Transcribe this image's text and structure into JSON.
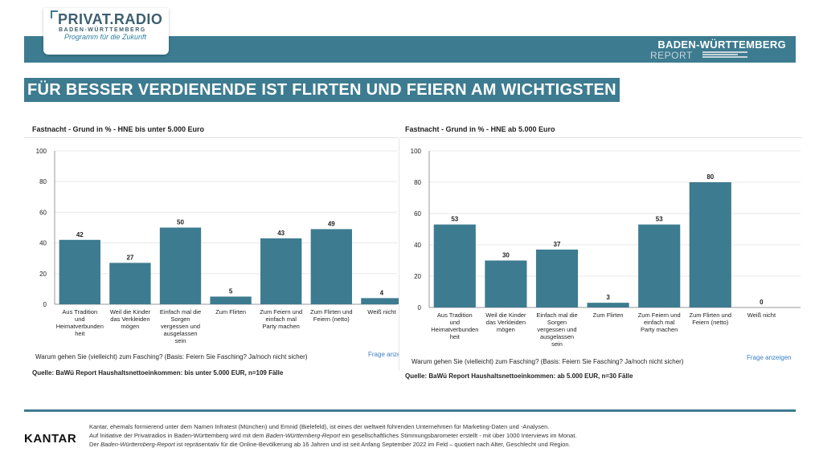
{
  "logo": {
    "title": "PRIVAT.RADIO",
    "subtitle": "BADEN-WÜRTTEMBERG",
    "tagline": "Programm für die Zukunft"
  },
  "brand": {
    "line1": "BADEN-WÜRTTEMBERG",
    "line2": "REPORT"
  },
  "headline": "FÜR BESSER VERDIENENDE IST FLIRTEN UND FEIERN AM WICHTIGSTEN",
  "colors": {
    "banner": "#3d7b90",
    "bar": "#3d7b90",
    "link": "#3b7fc4"
  },
  "panels": [
    {
      "title": "Fastnacht - Grund in % - HNE bis unter 5.000 Euro",
      "question": "Warum gehen Sie (vielleicht) zum Fasching? (Basis: Feiern Sie Fasching? Ja/noch nicht sicher)",
      "frage": "Frage anzeigen",
      "source": "Quelle: BaWü Report Haushaltsnettoeinkommen: bis unter 5.000 EUR, n=109 Fälle"
    },
    {
      "title": "Fastnacht - Grund in % - HNE ab 5.000 Euro",
      "question": "Warum gehen Sie (vielleicht) zum Fasching? (Basis: Feiern Sie Fasching? Ja/noch nicht sicher)",
      "frage": "Frage anzeigen",
      "source": "Quelle: BaWü Report Haushaltsnettoeinkommen: ab 5.000 EUR, n=30 Fälle"
    }
  ],
  "chart_data": [
    {
      "type": "bar",
      "title": "Fastnacht - Grund in % - HNE bis unter 5.000 Euro",
      "categories": [
        [
          "Aus Tradition",
          "und",
          "Heimatverbunden",
          "heit"
        ],
        [
          "Weil die Kinder",
          "das Verkleiden",
          "mögen"
        ],
        [
          "Einfach mal die",
          "Sorgen",
          "vergessen und",
          "ausgelassen",
          "sein"
        ],
        [
          "Zum Flirten"
        ],
        [
          "Zum Feiern und",
          "einfach mal",
          "Party machen"
        ],
        [
          "Zum Flirten und",
          "Feiern (netto)"
        ],
        [
          "Weiß nicht"
        ]
      ],
      "values": [
        42,
        27,
        50,
        5,
        43,
        49,
        4
      ],
      "ylim": [
        0,
        100
      ],
      "yticks": [
        0,
        20,
        40,
        60,
        80,
        100
      ],
      "grid": true
    },
    {
      "type": "bar",
      "title": "Fastnacht - Grund in % - HNE ab 5.000 Euro",
      "categories": [
        [
          "Aus Tradition",
          "und",
          "Heimatverbunden",
          "heit"
        ],
        [
          "Weil die Kinder",
          "das Verkleiden",
          "mögen"
        ],
        [
          "Einfach mal die",
          "Sorgen",
          "vergessen und",
          "ausgelassen",
          "sein"
        ],
        [
          "Zum Flirten"
        ],
        [
          "Zum Feiern und",
          "einfach mal",
          "Party machen"
        ],
        [
          "Zum Flirten und",
          "Feiern (netto)"
        ],
        [
          "Weiß nicht"
        ]
      ],
      "values": [
        53,
        30,
        37,
        3,
        53,
        80,
        0
      ],
      "ylim": [
        0,
        100
      ],
      "yticks": [
        0,
        20,
        40,
        60,
        80,
        100
      ],
      "grid": true
    }
  ],
  "footer": {
    "company": "KANTAR",
    "line1": "Kantar, ehemals formierend unter dem Namen Infratest (München) und Emnid (Bielefeld), ist eines der weltweit führenden Unternehmen für Marketing-Daten und -Analysen.",
    "line2a": "Auf Initiative der Privatradios in Baden-Württemberg wird mit dem ",
    "line2b": "Baden-Württemberg-Report",
    "line2c": " ein gesellschaftliches Stimmungsbarometer erstellt - mit über 1000 Interviews im Monat.",
    "line3a": "Der ",
    "line3b": "Baden-Württemberg-Report",
    "line3c": " ist repräsentativ für die Online-Bevölkerung ab 16 Jahren und ist seit Anfang September 2022 im Feld – quotiert nach Alter, Geschlecht und Region."
  }
}
